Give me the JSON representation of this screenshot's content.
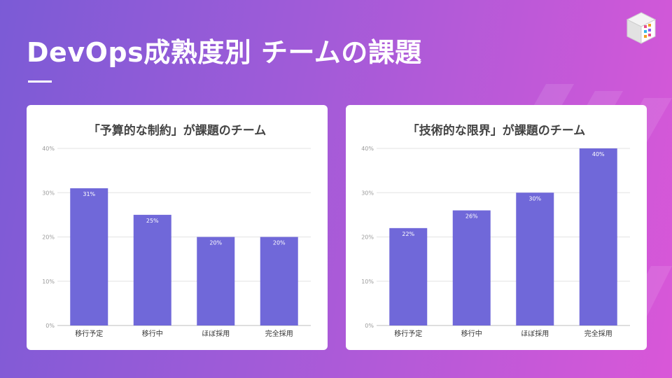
{
  "slide": {
    "title": "DevOps成熟度別 チームの課題"
  },
  "colors": {
    "bar": "#7068d9",
    "grid": "#e3e3e3",
    "tick_text": "#9a9a9a",
    "category_text": "#333333",
    "value_text": "#ffffff"
  },
  "chart_data": [
    {
      "type": "bar",
      "title": "「予算的な制約」が課題のチーム",
      "categories": [
        "移行予定",
        "移行中",
        "ほぼ採用",
        "完全採用"
      ],
      "values": [
        31,
        25,
        20,
        20
      ],
      "value_labels": [
        "31%",
        "25%",
        "20%",
        "20%"
      ],
      "ylim": [
        0,
        40
      ],
      "yticks": [
        0,
        10,
        20,
        30,
        40
      ],
      "ytick_labels": [
        "0%",
        "10%",
        "20%",
        "30%",
        "40%"
      ],
      "grid": true,
      "legend": "none"
    },
    {
      "type": "bar",
      "title": "「技術的な限界」が課題のチーム",
      "categories": [
        "移行予定",
        "移行中",
        "ほぼ採用",
        "完全採用"
      ],
      "values": [
        22,
        26,
        30,
        40
      ],
      "value_labels": [
        "22%",
        "26%",
        "30%",
        "40%"
      ],
      "ylim": [
        0,
        40
      ],
      "yticks": [
        0,
        10,
        20,
        30,
        40
      ],
      "ytick_labels": [
        "0%",
        "10%",
        "20%",
        "30%",
        "40%"
      ],
      "grid": true,
      "legend": "none"
    }
  ]
}
